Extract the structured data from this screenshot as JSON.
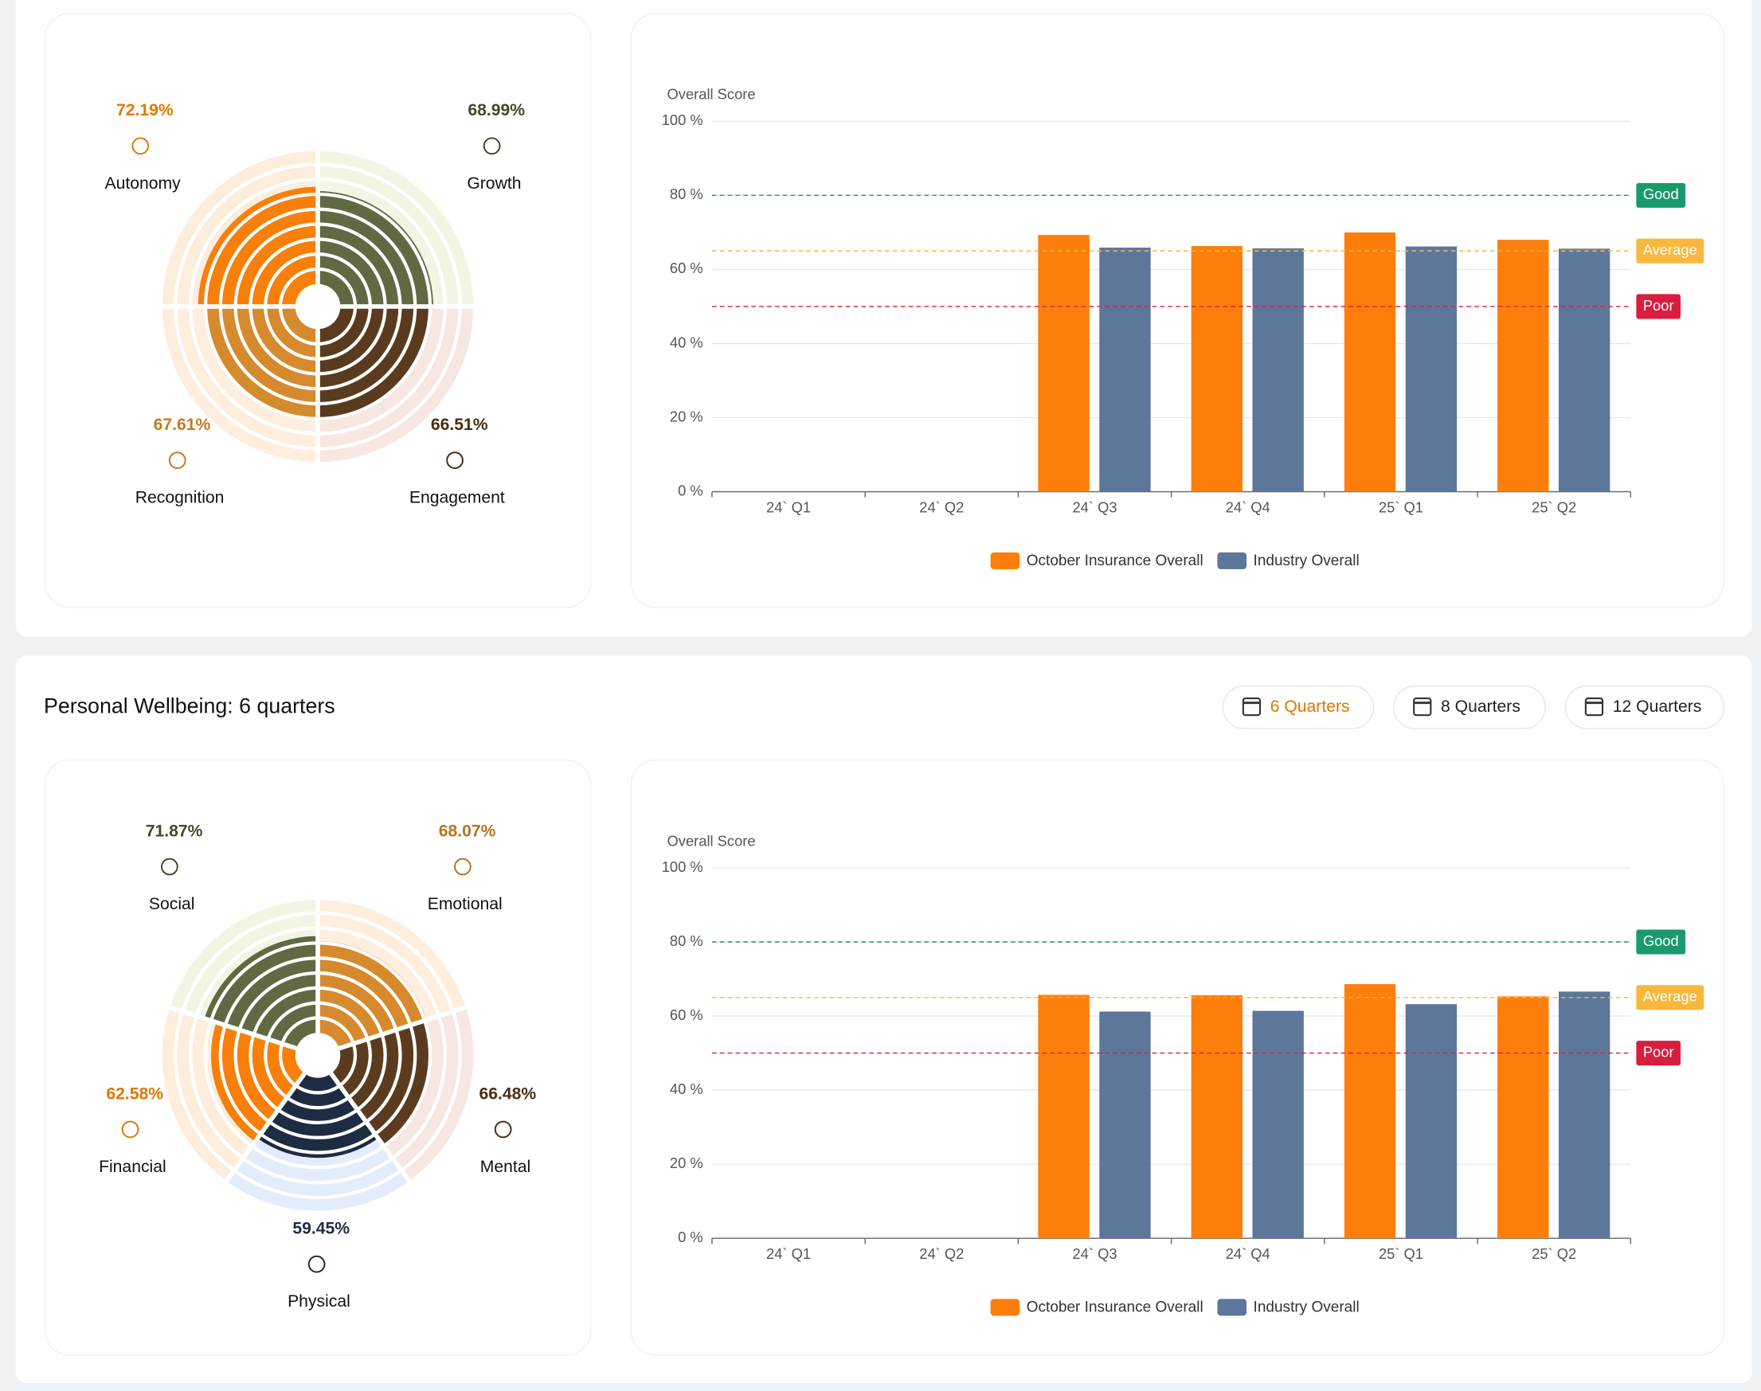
{
  "chart_data": [
    {
      "type": "radial",
      "categories": [
        "Autonomy",
        "Growth",
        "Recognition",
        "Engagement"
      ],
      "values": [
        72.19,
        68.99,
        67.61,
        66.51
      ],
      "value_labels": [
        "72.19%",
        "68.99%",
        "67.61%",
        "66.51%"
      ],
      "colors": [
        "#f77f0a",
        "#5f6a42",
        "#d68a2e",
        "#5b3b1f"
      ],
      "background_colors": [
        "#fdeddc",
        "#f3f5e4",
        "#fdeedf",
        "#f6e7e2"
      ],
      "label_colors": [
        "#e07800",
        "#3f4a26",
        "#c67a22",
        "#4a2e14"
      ]
    },
    {
      "type": "bar",
      "y_label": "Overall Score",
      "categories": [
        "24` Q1",
        "24` Q2",
        "24` Q3",
        "24` Q4",
        "25` Q1",
        "25` Q2"
      ],
      "series": [
        {
          "name": "October Insurance Overall",
          "color": "#fd7e0a",
          "values": [
            null,
            null,
            69.3,
            66.3,
            70,
            68
          ]
        },
        {
          "name": "Industry Overall",
          "color": "#5d779b",
          "values": [
            null,
            null,
            65.9,
            65.7,
            66.2,
            65.6
          ]
        }
      ],
      "ylim": [
        0,
        100
      ],
      "yticks": [
        {
          "value": 0,
          "label": "0 %"
        },
        {
          "value": 20,
          "label": "20 %"
        },
        {
          "value": 40,
          "label": "40 %"
        },
        {
          "value": 60,
          "label": "60 %"
        },
        {
          "value": 80,
          "label": "80 %"
        },
        {
          "value": 100,
          "label": "100 %"
        }
      ],
      "grid": true,
      "reference_lines": [
        {
          "label": "Good",
          "value": 80,
          "color": "#1a9a6b"
        },
        {
          "label": "Average",
          "value": 65,
          "color": "#f9b73b"
        },
        {
          "label": "Poor",
          "value": 50,
          "color": "#d81e3f"
        }
      ]
    },
    {
      "type": "radial",
      "categories": [
        "Social",
        "Emotional",
        "Financial",
        "Mental",
        "Physical"
      ],
      "values": [
        71.87,
        68.07,
        62.58,
        66.48,
        59.45
      ],
      "value_labels": [
        "71.87%",
        "68.07%",
        "62.58%",
        "66.48%",
        "59.45%"
      ],
      "colors": [
        "#5f6a42",
        "#d68a2e",
        "#f77f0a",
        "#5b3b1f",
        "#1e2c43"
      ],
      "background_colors": [
        "#f3f5e4",
        "#fdeedf",
        "#fdeddc",
        "#f6e7e2",
        "#e3ecfb"
      ],
      "label_colors": [
        "#3f4a26",
        "#b8741e",
        "#e07800",
        "#4a2e14",
        "#1e2c43"
      ]
    },
    {
      "type": "bar",
      "y_label": "Overall Score",
      "categories": [
        "24` Q1",
        "24` Q2",
        "24` Q3",
        "24` Q4",
        "25` Q1",
        "25` Q2"
      ],
      "series": [
        {
          "name": "October Insurance Overall",
          "color": "#fd7e0a",
          "values": [
            null,
            null,
            65.7,
            65.6,
            68.6,
            65.3
          ]
        },
        {
          "name": "Industry Overall",
          "color": "#5d779b",
          "values": [
            null,
            null,
            61.2,
            61.4,
            63.2,
            66.6
          ]
        }
      ],
      "ylim": [
        0,
        100
      ],
      "yticks": [
        {
          "value": 0,
          "label": "0 %"
        },
        {
          "value": 20,
          "label": "20 %"
        },
        {
          "value": 40,
          "label": "40 %"
        },
        {
          "value": 60,
          "label": "60 %"
        },
        {
          "value": 80,
          "label": "80 %"
        },
        {
          "value": 100,
          "label": "100 %"
        }
      ],
      "grid": true,
      "reference_lines": [
        {
          "label": "Good",
          "value": 80,
          "color": "#1a9a6b"
        },
        {
          "label": "Average",
          "value": 65,
          "color": "#f9b73b"
        },
        {
          "label": "Poor",
          "value": 50,
          "color": "#d81e3f"
        }
      ]
    }
  ],
  "section_title": "Personal Wellbeing: 6 quarters",
  "buttons": [
    {
      "label": "6 Quarters",
      "active": true
    },
    {
      "label": "8 Quarters",
      "active": false
    },
    {
      "label": "12 Quarters",
      "active": false
    }
  ]
}
